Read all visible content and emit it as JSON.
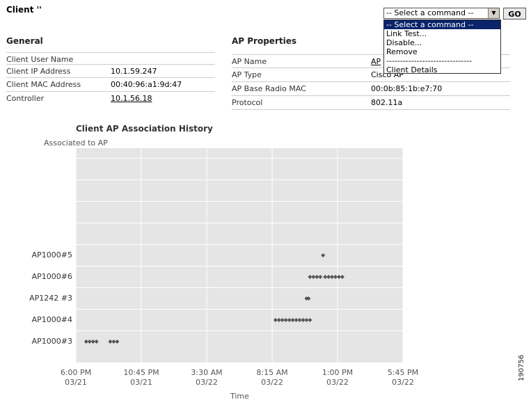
{
  "header": {
    "title": "Client ''"
  },
  "command": {
    "selected": "-- Select a command --",
    "go_label": "GO",
    "options": [
      "-- Select a command --",
      "Link Test...",
      "Disable...",
      "Remove",
      "-------------------------------",
      "Client Details"
    ]
  },
  "general": {
    "title": "General",
    "rows": [
      {
        "label": "Client User Name",
        "value": ""
      },
      {
        "label": "Client IP Address",
        "value": "10.1.59.247"
      },
      {
        "label": "Client MAC Address",
        "value": "00:40:96:a1:9d:47"
      },
      {
        "label": "Controller",
        "value": "10.1.56.18"
      }
    ]
  },
  "ap": {
    "title": "AP Properties",
    "rows": [
      {
        "label": "AP Name",
        "value": "AP"
      },
      {
        "label": "AP Type",
        "value": "Cisco AP"
      },
      {
        "label": "AP Base Radio MAC",
        "value": "00:0b:85:1b:e7:70"
      },
      {
        "label": "Protocol",
        "value": "802.11a"
      }
    ]
  },
  "figure_code": "190756",
  "chart_data": {
    "type": "scatter",
    "title": "Client AP Association History",
    "ylabel": "Associated to AP",
    "xlabel": "Time",
    "categories": [
      "AP1000#3",
      "AP1000#4",
      "AP1242 #3",
      "AP1000#6",
      "AP1000#5"
    ],
    "x_ticks": [
      "6:00 PM|03/21",
      "10:45 PM|03/21",
      "3:30 AM|03/22",
      "8:15 AM|03/22",
      "1:00 PM|03/22",
      "5:45 PM|03/22"
    ],
    "xlim_hours": [
      0,
      23.75
    ],
    "grid": true,
    "background": "#e5e5e5",
    "marker_color": "#555555",
    "series": [
      {
        "ap": "AP1000#3",
        "x": [
          0.75,
          1.0,
          1.25,
          1.5,
          2.5,
          2.75,
          3.0
        ]
      },
      {
        "ap": "AP1000#4",
        "x": [
          14.5,
          14.75,
          15.0,
          15.25,
          15.5,
          15.75,
          16.0,
          16.25,
          16.5,
          16.75,
          17.0
        ]
      },
      {
        "ap": "AP1242 #3",
        "x": [
          16.75,
          16.9
        ]
      },
      {
        "ap": "AP1000#6",
        "x": [
          17.0,
          17.25,
          17.5,
          17.75,
          18.1,
          18.35,
          18.6,
          18.85,
          19.1,
          19.35
        ]
      },
      {
        "ap": "AP1000#5",
        "x": [
          17.95
        ]
      }
    ]
  }
}
